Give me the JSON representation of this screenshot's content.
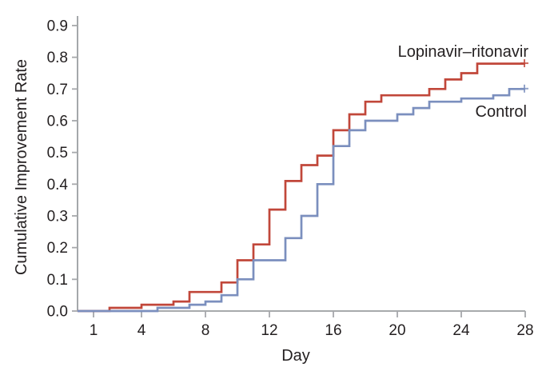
{
  "figure": {
    "background": "#ffffff",
    "text_color": "#231f20",
    "axis_color": "#9b9ea1",
    "tick_color": "#a6a8ab"
  },
  "chart_data": {
    "type": "line",
    "subtype": "step-cumulative-incidence",
    "title": "",
    "xlabel": "Day",
    "ylabel": "Cumulative Improvement Rate",
    "xlim": [
      0,
      28
    ],
    "ylim": [
      0.0,
      0.9
    ],
    "grid": false,
    "legend_position": "inline-annotations",
    "x_tick_values": [
      1,
      4,
      8,
      12,
      16,
      20,
      24,
      28
    ],
    "x_tick_labels": [
      "1",
      "4",
      "8",
      "12",
      "16",
      "20",
      "24",
      "28"
    ],
    "y_tick_values": [
      0.0,
      0.1,
      0.2,
      0.3,
      0.4,
      0.5,
      0.6,
      0.7,
      0.8,
      0.9
    ],
    "y_tick_labels": [
      "0.0",
      "0.1",
      "0.2",
      "0.3",
      "0.4",
      "0.5",
      "0.6",
      "0.7",
      "0.8",
      "0.9"
    ],
    "series": [
      {
        "name": "Lopinavir–ritonavir",
        "color": "#c1473a",
        "censored_at_end": true,
        "final_value": 0.78,
        "points": [
          [
            0,
            0.0
          ],
          [
            2,
            0.01
          ],
          [
            4,
            0.02
          ],
          [
            6,
            0.03
          ],
          [
            7,
            0.06
          ],
          [
            9,
            0.09
          ],
          [
            10,
            0.16
          ],
          [
            11,
            0.21
          ],
          [
            12,
            0.32
          ],
          [
            13,
            0.41
          ],
          [
            14,
            0.46
          ],
          [
            15,
            0.49
          ],
          [
            16,
            0.57
          ],
          [
            17,
            0.62
          ],
          [
            18,
            0.66
          ],
          [
            19,
            0.68
          ],
          [
            22,
            0.7
          ],
          [
            23,
            0.73
          ],
          [
            24,
            0.75
          ],
          [
            25,
            0.78
          ],
          [
            28,
            0.78
          ]
        ]
      },
      {
        "name": "Control",
        "color": "#7b8fbe",
        "censored_at_end": true,
        "final_value": 0.7,
        "points": [
          [
            0,
            0.0
          ],
          [
            5,
            0.01
          ],
          [
            7,
            0.02
          ],
          [
            8,
            0.03
          ],
          [
            9,
            0.05
          ],
          [
            10,
            0.1
          ],
          [
            11,
            0.16
          ],
          [
            13,
            0.23
          ],
          [
            14,
            0.3
          ],
          [
            15,
            0.4
          ],
          [
            16,
            0.52
          ],
          [
            17,
            0.57
          ],
          [
            18,
            0.6
          ],
          [
            20,
            0.62
          ],
          [
            21,
            0.64
          ],
          [
            22,
            0.66
          ],
          [
            24,
            0.67
          ],
          [
            26,
            0.68
          ],
          [
            27,
            0.7
          ],
          [
            28,
            0.7
          ]
        ]
      }
    ]
  }
}
